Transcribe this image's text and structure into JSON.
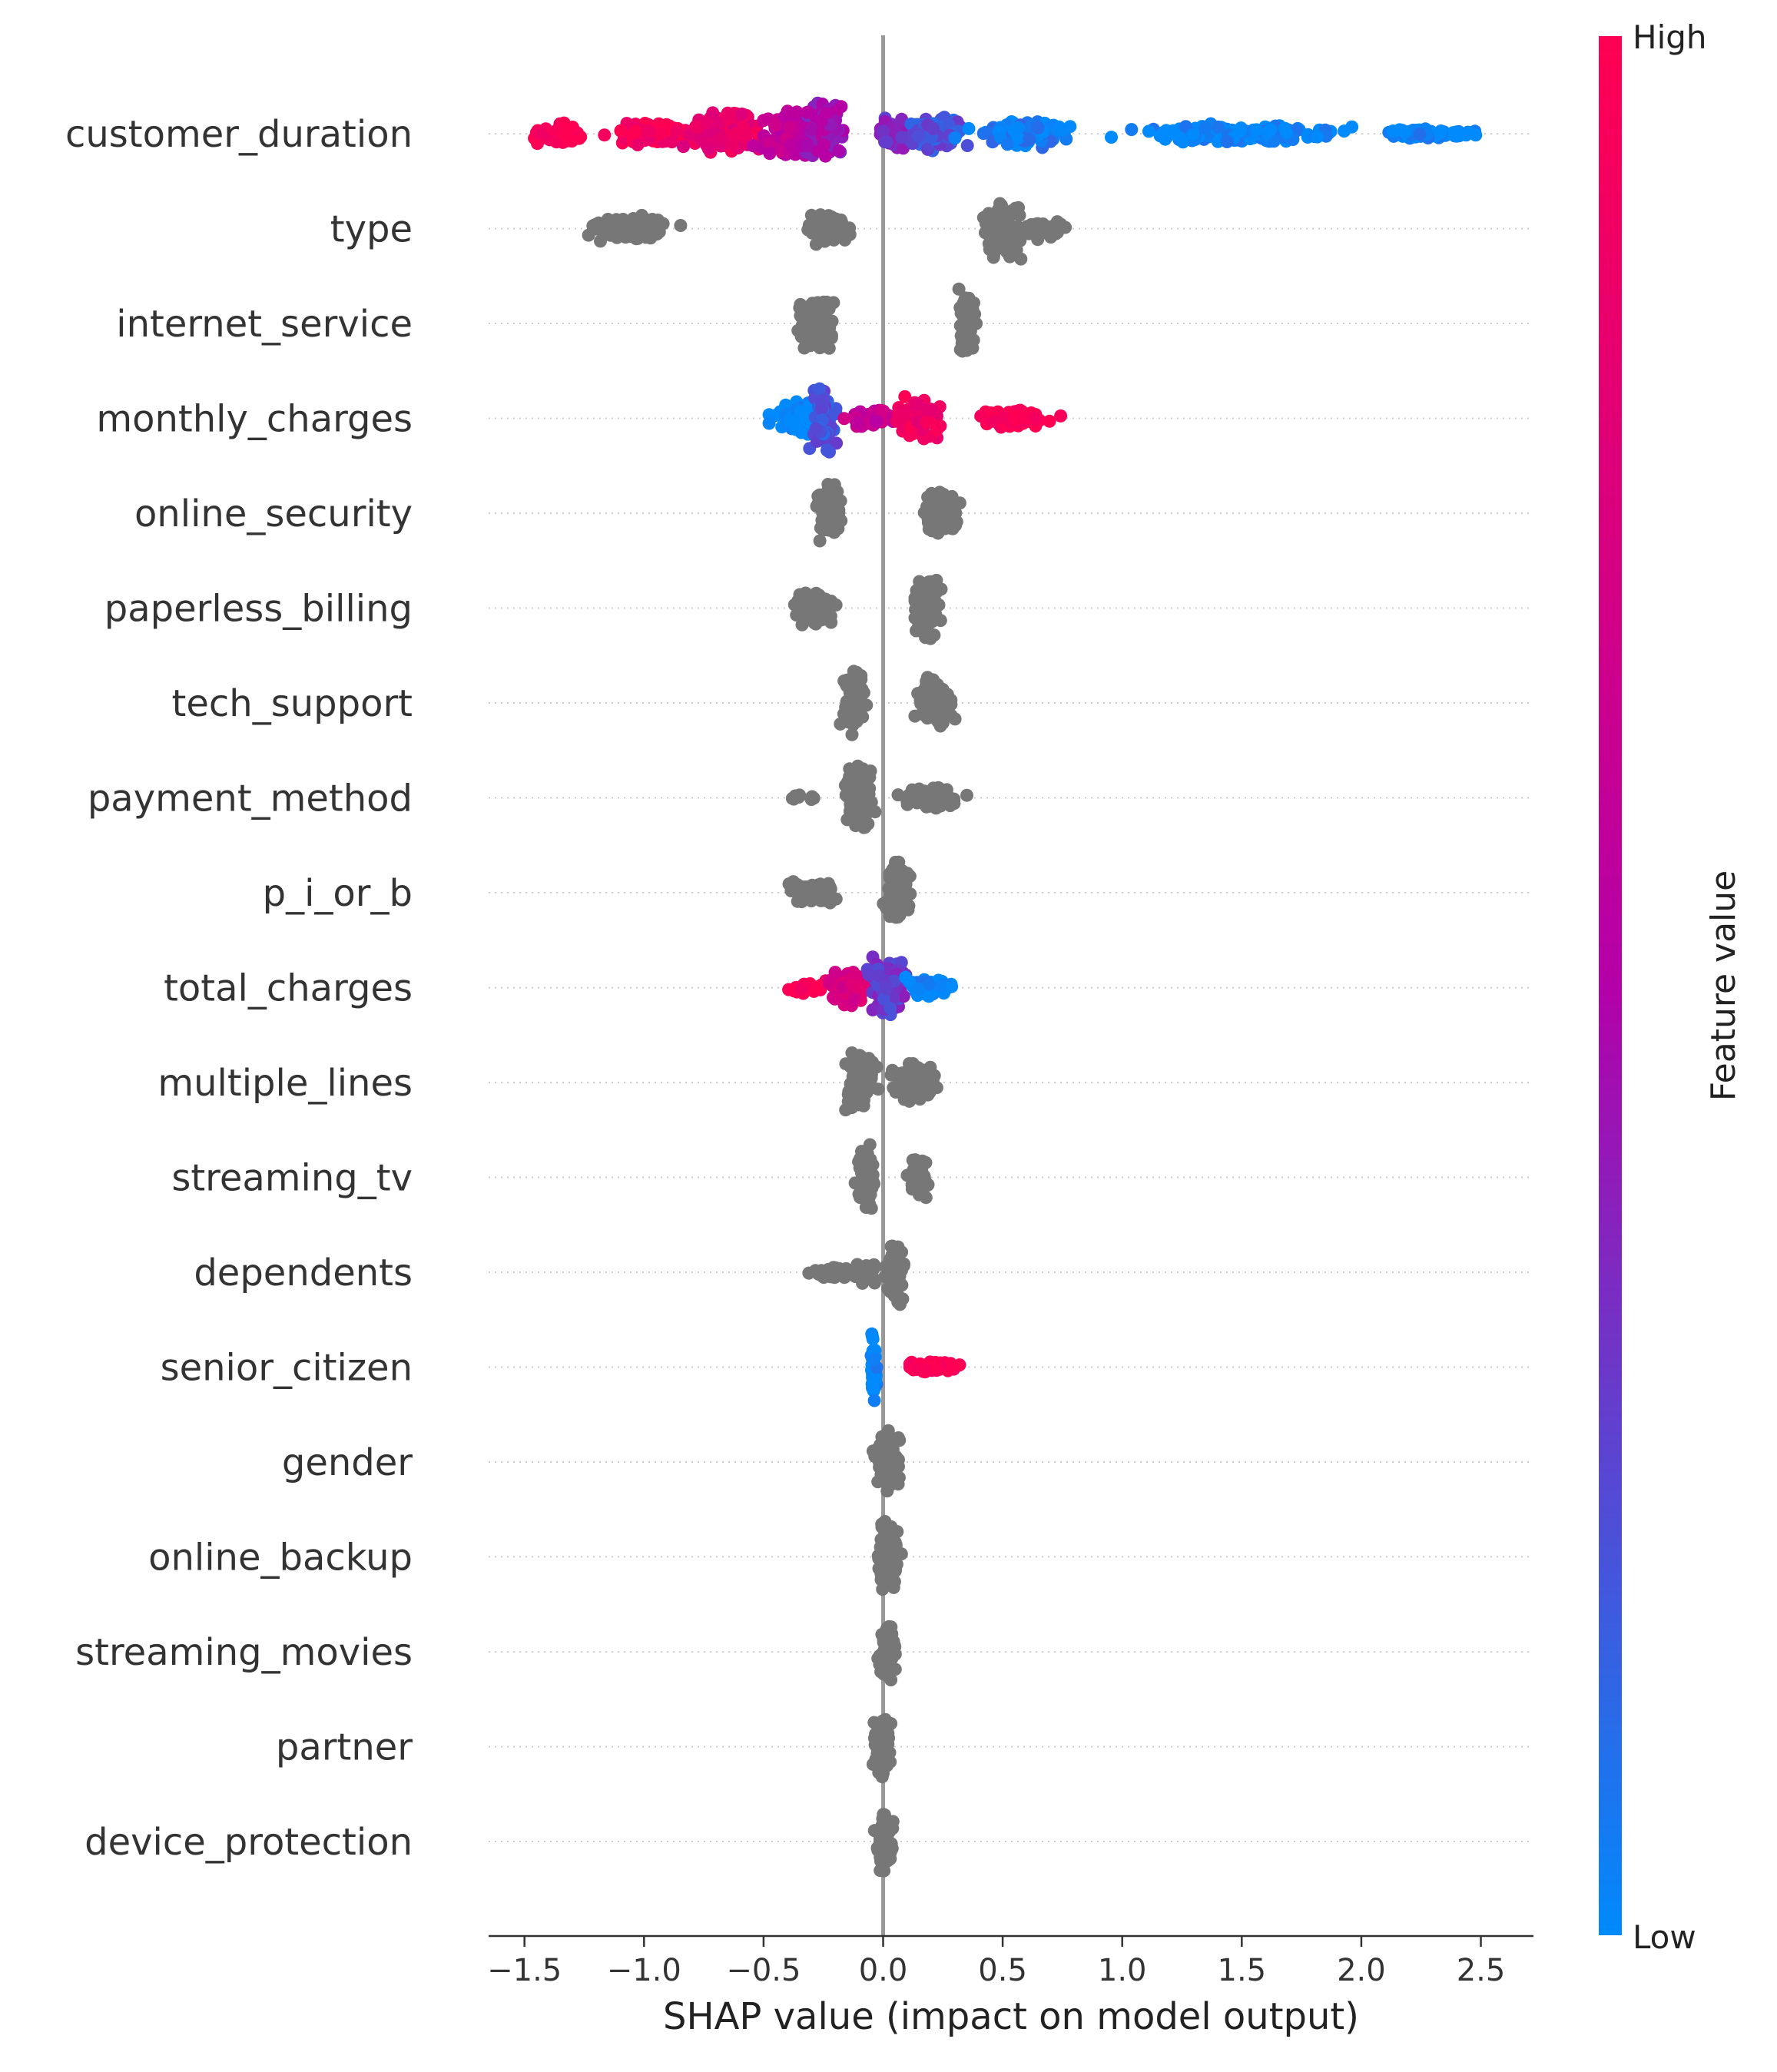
{
  "chart_data": {
    "type": "scatter",
    "subtype": "shap-beeswarm",
    "title": "",
    "xlabel": "SHAP value (impact on model output)",
    "ylabel": "",
    "xlim": [
      -1.65,
      2.72
    ],
    "xticks": [
      -1.5,
      -1.0,
      -0.5,
      0.0,
      0.5,
      1.0,
      1.5,
      2.0,
      2.5
    ],
    "xtick_labels": [
      "−1.5",
      "−1.0",
      "−0.5",
      "0.0",
      "0.5",
      "1.0",
      "1.5",
      "2.0",
      "2.5"
    ],
    "grid": "horizontal-dotted-rows",
    "zero_line": true,
    "colorbar": {
      "label": "Feature value",
      "high_label": "High",
      "low_label": "Low",
      "high_color": "#ff0052",
      "mid_color": "#b400a8",
      "low_color": "#008afb",
      "no_value_color": "#777777"
    },
    "features": [
      {
        "name": "customer_duration",
        "colored": true,
        "clusters": [
          {
            "center": -1.35,
            "spread": 0.1,
            "height": 0.3,
            "n": 60,
            "color": 1.0
          },
          {
            "center": -0.95,
            "spread": 0.15,
            "height": 0.35,
            "n": 90,
            "color": 0.95
          },
          {
            "center": -0.65,
            "spread": 0.12,
            "height": 0.55,
            "n": 120,
            "color": 0.85
          },
          {
            "center": -0.38,
            "spread": 0.1,
            "height": 0.7,
            "n": 130,
            "color": 0.6
          },
          {
            "center": -0.25,
            "spread": 0.07,
            "height": 0.9,
            "n": 110,
            "color": 0.45
          },
          {
            "center": 0.05,
            "spread": 0.06,
            "height": 0.4,
            "n": 40,
            "color": 0.35
          },
          {
            "center": 0.22,
            "spread": 0.1,
            "height": 0.5,
            "n": 90,
            "color": 0.2
          },
          {
            "center": 0.6,
            "spread": 0.18,
            "height": 0.35,
            "n": 100,
            "color": 0.05
          },
          {
            "center": 1.5,
            "spread": 0.35,
            "height": 0.25,
            "n": 160,
            "color": 0.0
          },
          {
            "center": 2.3,
            "spread": 0.18,
            "height": 0.15,
            "n": 70,
            "color": 0.0
          }
        ]
      },
      {
        "name": "type",
        "colored": false,
        "clusters": [
          {
            "center": -1.05,
            "spread": 0.14,
            "height": 0.35,
            "n": 80
          },
          {
            "center": -0.25,
            "spread": 0.07,
            "height": 0.45,
            "n": 60
          },
          {
            "center": 0.5,
            "spread": 0.06,
            "height": 0.8,
            "n": 100
          },
          {
            "center": 0.65,
            "spread": 0.08,
            "height": 0.3,
            "n": 40
          }
        ]
      },
      {
        "name": "internet_service",
        "colored": false,
        "clusters": [
          {
            "center": -0.28,
            "spread": 0.06,
            "height": 0.75,
            "n": 110
          },
          {
            "center": 0.35,
            "spread": 0.03,
            "height": 0.9,
            "n": 90
          }
        ]
      },
      {
        "name": "monthly_charges",
        "colored": true,
        "clusters": [
          {
            "center": -0.35,
            "spread": 0.08,
            "height": 0.45,
            "n": 90,
            "color": 0.0
          },
          {
            "center": -0.25,
            "spread": 0.04,
            "height": 0.9,
            "n": 70,
            "color": 0.2
          },
          {
            "center": -0.05,
            "spread": 0.07,
            "height": 0.3,
            "n": 50,
            "color": 0.6
          },
          {
            "center": 0.15,
            "spread": 0.07,
            "height": 0.6,
            "n": 90,
            "color": 0.9
          },
          {
            "center": 0.55,
            "spread": 0.12,
            "height": 0.25,
            "n": 80,
            "color": 1.0
          }
        ]
      },
      {
        "name": "online_security",
        "colored": false,
        "clusters": [
          {
            "center": -0.22,
            "spread": 0.04,
            "height": 0.8,
            "n": 100
          },
          {
            "center": 0.25,
            "spread": 0.06,
            "height": 0.6,
            "n": 90
          }
        ]
      },
      {
        "name": "paperless_billing",
        "colored": false,
        "clusters": [
          {
            "center": -0.3,
            "spread": 0.07,
            "height": 0.5,
            "n": 80
          },
          {
            "center": 0.18,
            "spread": 0.05,
            "height": 0.85,
            "n": 100
          }
        ]
      },
      {
        "name": "tech_support",
        "colored": false,
        "clusters": [
          {
            "center": -0.12,
            "spread": 0.04,
            "height": 0.85,
            "n": 100
          },
          {
            "center": 0.22,
            "spread": 0.06,
            "height": 0.7,
            "n": 90
          }
        ]
      },
      {
        "name": "payment_method",
        "colored": false,
        "clusters": [
          {
            "center": -0.33,
            "spread": 0.06,
            "height": 0.1,
            "n": 10
          },
          {
            "center": -0.1,
            "spread": 0.05,
            "height": 0.85,
            "n": 90
          },
          {
            "center": 0.2,
            "spread": 0.1,
            "height": 0.3,
            "n": 70
          }
        ]
      },
      {
        "name": "p_i_or_b",
        "colored": false,
        "clusters": [
          {
            "center": -0.3,
            "spread": 0.09,
            "height": 0.3,
            "n": 90
          },
          {
            "center": 0.06,
            "spread": 0.04,
            "height": 0.85,
            "n": 100
          }
        ]
      },
      {
        "name": "total_charges",
        "colored": true,
        "clusters": [
          {
            "center": -0.3,
            "spread": 0.07,
            "height": 0.2,
            "n": 30,
            "color": 1.0
          },
          {
            "center": -0.15,
            "spread": 0.07,
            "height": 0.5,
            "n": 70,
            "color": 0.75
          },
          {
            "center": 0.02,
            "spread": 0.06,
            "height": 0.9,
            "n": 110,
            "color": 0.3
          },
          {
            "center": 0.18,
            "spread": 0.08,
            "height": 0.3,
            "n": 60,
            "color": 0.0
          }
        ]
      },
      {
        "name": "multiple_lines",
        "colored": false,
        "clusters": [
          {
            "center": -0.1,
            "spread": 0.05,
            "height": 0.85,
            "n": 100
          },
          {
            "center": 0.12,
            "spread": 0.07,
            "height": 0.5,
            "n": 90
          }
        ]
      },
      {
        "name": "streaming_tv",
        "colored": false,
        "clusters": [
          {
            "center": -0.07,
            "spread": 0.03,
            "height": 0.85,
            "n": 80
          },
          {
            "center": 0.15,
            "spread": 0.03,
            "height": 0.55,
            "n": 60
          }
        ]
      },
      {
        "name": "dependents",
        "colored": false,
        "clusters": [
          {
            "center": -0.2,
            "spread": 0.08,
            "height": 0.15,
            "n": 40
          },
          {
            "center": -0.07,
            "spread": 0.04,
            "height": 0.3,
            "n": 30
          },
          {
            "center": 0.05,
            "spread": 0.03,
            "height": 0.85,
            "n": 90
          }
        ]
      },
      {
        "name": "senior_citizen",
        "colored": true,
        "clusters": [
          {
            "center": -0.04,
            "spread": 0.01,
            "height": 0.9,
            "n": 80,
            "color": 0.0
          },
          {
            "center": 0.2,
            "spread": 0.09,
            "height": 0.15,
            "n": 80,
            "color": 1.0
          }
        ]
      },
      {
        "name": "gender",
        "colored": false,
        "clusters": [
          {
            "center": 0.02,
            "spread": 0.04,
            "height": 0.85,
            "n": 120
          }
        ]
      },
      {
        "name": "online_backup",
        "colored": false,
        "clusters": [
          {
            "center": 0.02,
            "spread": 0.035,
            "height": 0.9,
            "n": 120
          }
        ]
      },
      {
        "name": "streaming_movies",
        "colored": false,
        "clusters": [
          {
            "center": 0.02,
            "spread": 0.03,
            "height": 0.8,
            "n": 90
          }
        ]
      },
      {
        "name": "partner",
        "colored": false,
        "clusters": [
          {
            "center": 0.0,
            "spread": 0.03,
            "height": 0.8,
            "n": 90
          }
        ]
      },
      {
        "name": "device_protection",
        "colored": false,
        "clusters": [
          {
            "center": 0.01,
            "spread": 0.03,
            "height": 0.8,
            "n": 90
          }
        ]
      }
    ]
  }
}
